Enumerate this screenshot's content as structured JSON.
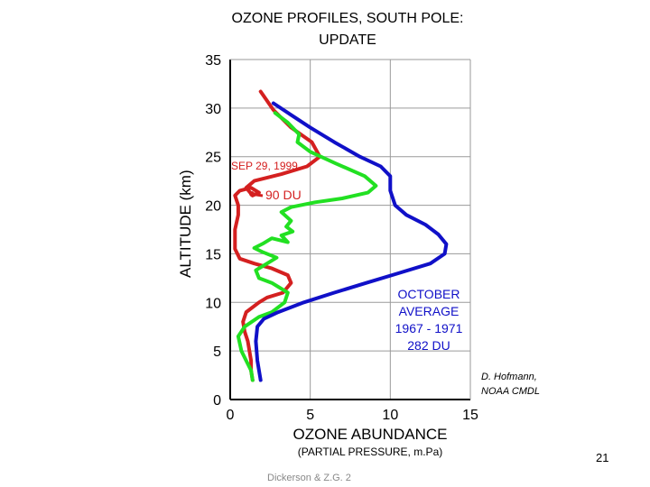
{
  "page": {
    "title_line1": "OZONE PROFILES, SOUTH POLE:",
    "title_line2": "UPDATE",
    "page_number": "21",
    "footer": "Dickerson & Z.G. 2",
    "credit_line1": "D. Hofmann,",
    "credit_line2": "NOAA CMDL"
  },
  "annotations": {
    "sep_label": "SEP 29, 1999",
    "du_label": "90 DU",
    "october_label": [
      "OCTOBER",
      "AVERAGE",
      "1967 - 1971",
      "282 DU"
    ]
  },
  "colors": {
    "red": "#d42020",
    "green": "#22e022",
    "blue": "#1010c8",
    "grid": "#9a9a9a"
  },
  "chart_data": {
    "type": "line",
    "xlabel": "OZONE ABUNDANCE",
    "xlabel_sub": "(PARTIAL PRESSURE, m.Pa)",
    "ylabel": "ALTITUDE (km)",
    "xlim": [
      0,
      15
    ],
    "ylim": [
      0,
      35
    ],
    "xticks": [
      "0",
      "5",
      "10",
      "15"
    ],
    "yticks": [
      "0",
      "5",
      "10",
      "15",
      "20",
      "25",
      "30",
      "35"
    ],
    "grid": true,
    "series": [
      {
        "name": "SEP 29, 1999",
        "color": "red",
        "points": [
          [
            1.4,
            2
          ],
          [
            1.3,
            3
          ],
          [
            1.3,
            4
          ],
          [
            1.2,
            5
          ],
          [
            1.1,
            6
          ],
          [
            0.9,
            7
          ],
          [
            0.8,
            8
          ],
          [
            1.0,
            9
          ],
          [
            1.8,
            10
          ],
          [
            2.3,
            10.5
          ],
          [
            3.3,
            11
          ],
          [
            3.8,
            12
          ],
          [
            3.6,
            12.8
          ],
          [
            2.6,
            13.5
          ],
          [
            1.5,
            14
          ],
          [
            0.6,
            14.5
          ],
          [
            0.3,
            15.5
          ],
          [
            0.3,
            17.5
          ],
          [
            0.5,
            19
          ],
          [
            0.5,
            20
          ],
          [
            0.3,
            21
          ],
          [
            0.6,
            21.5
          ],
          [
            1.3,
            21.8
          ],
          [
            1.8,
            21.3
          ],
          [
            1.4,
            21
          ],
          [
            1.0,
            21.8
          ],
          [
            1.5,
            22.5
          ],
          [
            3.2,
            23.2
          ],
          [
            4.8,
            24
          ],
          [
            5.6,
            25
          ],
          [
            5.1,
            26.5
          ],
          [
            3.8,
            28
          ],
          [
            2.7,
            29.8
          ],
          [
            2.2,
            31
          ],
          [
            1.9,
            31.7
          ]
        ]
      },
      {
        "name": "",
        "color": "green",
        "points": [
          [
            1.4,
            2
          ],
          [
            1.3,
            3
          ],
          [
            1.0,
            4
          ],
          [
            0.7,
            5
          ],
          [
            0.5,
            6.5
          ],
          [
            0.9,
            7.5
          ],
          [
            1.8,
            8.5
          ],
          [
            2.6,
            9
          ],
          [
            3.4,
            10
          ],
          [
            3.6,
            11
          ],
          [
            2.6,
            12
          ],
          [
            1.8,
            12.5
          ],
          [
            1.6,
            13.3
          ],
          [
            2.3,
            14
          ],
          [
            2.9,
            14.6
          ],
          [
            2.0,
            15.2
          ],
          [
            1.5,
            15.6
          ],
          [
            2.1,
            16.1
          ],
          [
            2.6,
            16.6
          ],
          [
            3.6,
            16.2
          ],
          [
            3.2,
            16.9
          ],
          [
            3.9,
            17.3
          ],
          [
            3.5,
            17.8
          ],
          [
            3.8,
            18.4
          ],
          [
            3.2,
            19.3
          ],
          [
            3.8,
            19.8
          ],
          [
            5.3,
            20.3
          ],
          [
            7.0,
            20.7
          ],
          [
            8.6,
            21.3
          ],
          [
            9.1,
            22
          ],
          [
            8.4,
            23
          ],
          [
            6.6,
            24.3
          ],
          [
            5.0,
            25.5
          ],
          [
            4.2,
            26.5
          ],
          [
            4.3,
            27.3
          ],
          [
            3.6,
            28.5
          ],
          [
            2.8,
            29.5
          ]
        ]
      },
      {
        "name": "OCTOBER AVERAGE 1967 - 1971",
        "color": "blue",
        "points": [
          [
            1.9,
            2
          ],
          [
            1.7,
            4
          ],
          [
            1.6,
            6
          ],
          [
            1.7,
            7.5
          ],
          [
            2.1,
            8.3
          ],
          [
            3.0,
            9
          ],
          [
            4.6,
            10
          ],
          [
            6.5,
            11
          ],
          [
            8.5,
            12
          ],
          [
            10.5,
            13
          ],
          [
            12.5,
            14
          ],
          [
            13.4,
            15
          ],
          [
            13.5,
            16
          ],
          [
            13.0,
            17
          ],
          [
            12.2,
            18
          ],
          [
            11.0,
            19
          ],
          [
            10.3,
            20
          ],
          [
            10.0,
            21.5
          ],
          [
            10.0,
            23
          ],
          [
            9.4,
            24
          ],
          [
            8.1,
            25
          ],
          [
            6.5,
            26.5
          ],
          [
            5.0,
            28
          ],
          [
            3.8,
            29.3
          ],
          [
            2.7,
            30.5
          ]
        ]
      }
    ]
  }
}
